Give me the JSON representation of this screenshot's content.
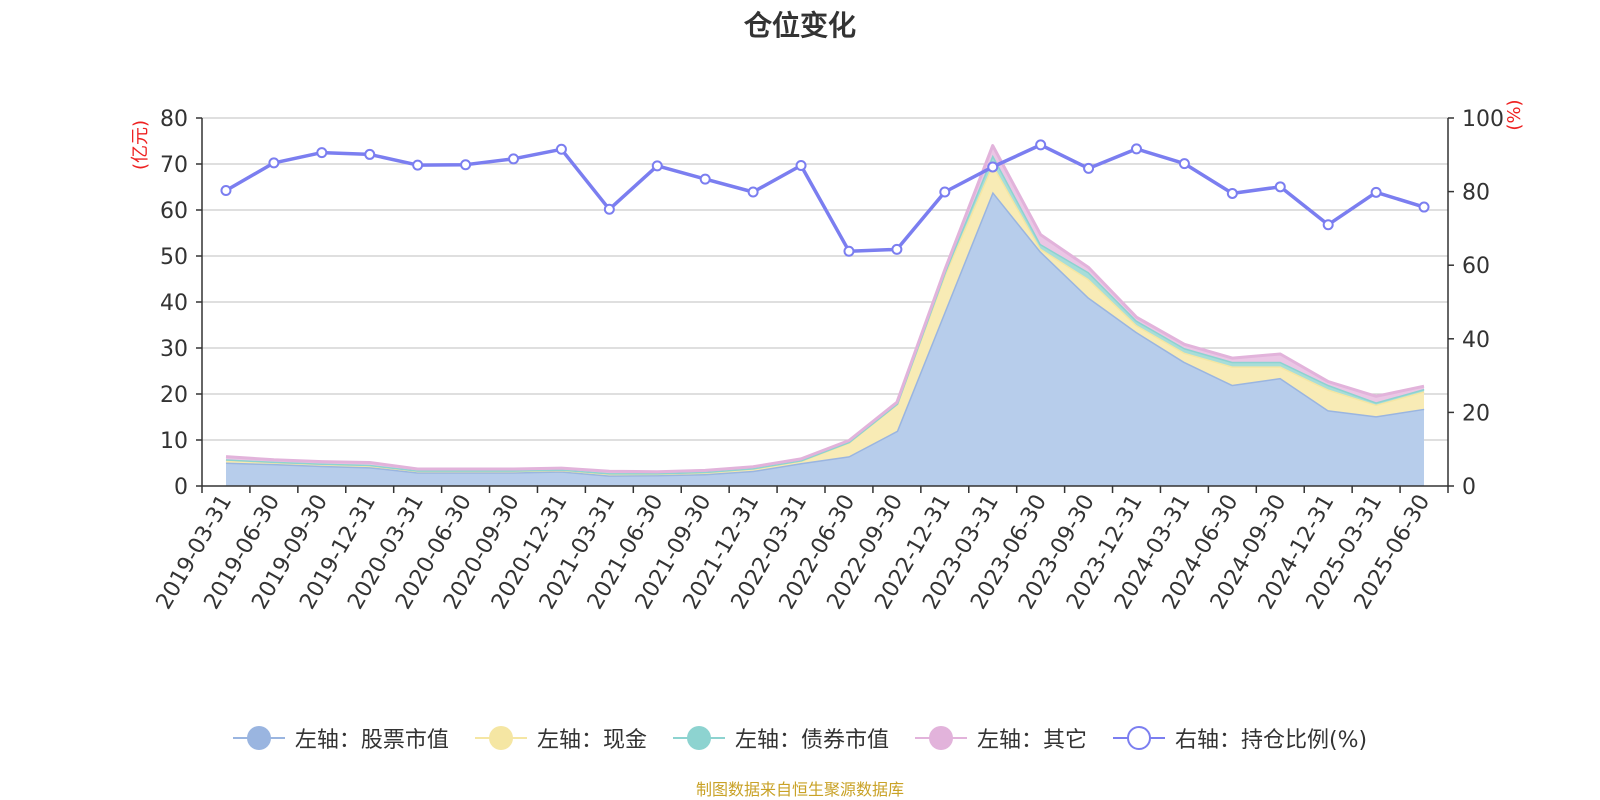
{
  "title": "仓位变化",
  "source_note": "制图数据来自恒生聚源数据库",
  "chart_data": {
    "type": "area",
    "title": "仓位变化",
    "categories": [
      "2019-03-31",
      "2019-06-30",
      "2019-09-30",
      "2019-12-31",
      "2020-03-31",
      "2020-06-30",
      "2020-09-30",
      "2020-12-31",
      "2021-03-31",
      "2021-06-30",
      "2021-09-30",
      "2021-12-31",
      "2022-03-31",
      "2022-06-30",
      "2022-09-30",
      "2022-12-31",
      "2023-03-31",
      "2023-06-30",
      "2023-09-30",
      "2023-12-31",
      "2024-03-31",
      "2024-06-30",
      "2024-09-30",
      "2024-12-31",
      "2025-03-31",
      "2025-06-30"
    ],
    "left_axis": {
      "label": "(亿元)",
      "ylim": [
        0,
        80
      ],
      "ticks": [
        0,
        10,
        20,
        30,
        40,
        50,
        60,
        70,
        80
      ]
    },
    "right_axis": {
      "label": "(%)",
      "ylim": [
        0,
        100
      ],
      "ticks": [
        0,
        20,
        40,
        60,
        80,
        100
      ]
    },
    "grid": true,
    "legend_position": "bottom",
    "series": [
      {
        "name": "左轴：股票市值",
        "axis": "left",
        "kind": "stacked-area",
        "color": "#9ab5e0",
        "fill": "#b7cdeb",
        "values": [
          5.1,
          4.8,
          4.4,
          4.1,
          3.0,
          3.0,
          3.0,
          3.2,
          2.3,
          2.4,
          2.6,
          3.3,
          5.0,
          6.5,
          12.0,
          38.0,
          64.0,
          51.0,
          41.0,
          33.5,
          27.0,
          22.0,
          23.5,
          16.5,
          15.2,
          16.8
        ]
      },
      {
        "name": "左轴：现金",
        "axis": "left",
        "kind": "stacked-area",
        "color": "#f5e6a3",
        "fill": "#f8ebb5",
        "values": [
          0.6,
          0.4,
          0.4,
          0.4,
          0.3,
          0.3,
          0.3,
          0.3,
          0.4,
          0.3,
          0.4,
          0.5,
          0.5,
          3.0,
          5.8,
          8.0,
          6.0,
          0.6,
          4.0,
          1.5,
          2.0,
          4.0,
          2.5,
          4.5,
          2.5,
          3.8
        ]
      },
      {
        "name": "左轴：债券市值",
        "axis": "left",
        "kind": "stacked-area",
        "color": "#8dd3d0",
        "fill": "#a7ddd9",
        "values": [
          0.1,
          0.1,
          0.1,
          0.1,
          0.1,
          0.1,
          0.1,
          0.1,
          0.1,
          0.1,
          0.1,
          0.1,
          0.1,
          0.1,
          0.1,
          0.5,
          2.0,
          1.0,
          1.5,
          1.0,
          1.0,
          1.0,
          1.0,
          1.0,
          0.5,
          0.5
        ]
      },
      {
        "name": "左轴：其它",
        "axis": "left",
        "kind": "stacked-area",
        "color": "#e2b3db",
        "fill": "#ebc6e5",
        "values": [
          0.6,
          0.4,
          0.4,
          0.5,
          0.3,
          0.3,
          0.3,
          0.3,
          0.4,
          0.3,
          0.3,
          0.3,
          0.3,
          0.3,
          0.3,
          0.5,
          2.0,
          2.0,
          1.0,
          0.7,
          0.8,
          0.8,
          1.7,
          0.7,
          1.3,
          0.6
        ]
      },
      {
        "name": "右轴：持仓比例(%)",
        "axis": "right",
        "kind": "line",
        "color": "#7b7ef0",
        "values": [
          80.3,
          87.8,
          90.6,
          90.1,
          87.2,
          87.3,
          88.9,
          91.5,
          75.2,
          87.0,
          83.4,
          79.9,
          87.1,
          63.8,
          64.3,
          79.9,
          86.7,
          92.7,
          86.3,
          91.6,
          87.6,
          79.5,
          81.3,
          71.0,
          79.8,
          75.8
        ]
      }
    ]
  }
}
